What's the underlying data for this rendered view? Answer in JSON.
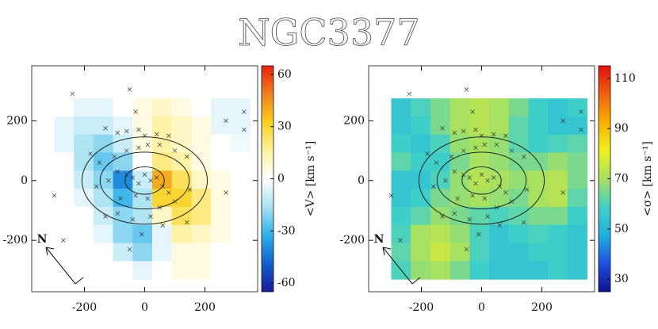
{
  "title": "NGC3377",
  "chart_data": [
    {
      "type": "map",
      "colorbar_label": "<V> [km s⁻¹]",
      "compass_label": "N",
      "xlim": [
        -375,
        375
      ],
      "ylim": [
        -372,
        384
      ],
      "xticks": [
        -200,
        0,
        200
      ],
      "yticks": [
        -200,
        0,
        200
      ],
      "clim": [
        -65,
        65
      ],
      "cticks": [
        -60,
        -30,
        0,
        30,
        60
      ],
      "colormap": [
        "#1a1a9a",
        "#1060d0",
        "#30b0e8",
        "#a8e2f2",
        "#ffffff",
        "#fff2a0",
        "#f8d020",
        "#f08020",
        "#e82010"
      ],
      "extent": {
        "x": [
          -300,
          350
        ],
        "y": [
          -330,
          275
        ]
      },
      "z": [
        [
          0,
          -5,
          -5,
          0,
          5,
          10,
          5,
          0,
          -5,
          -5
        ],
        [
          -5,
          -10,
          -10,
          -5,
          5,
          15,
          10,
          5,
          -5,
          -5
        ],
        [
          -5,
          -15,
          -20,
          -10,
          5,
          15,
          10,
          5,
          0,
          -3
        ],
        [
          0,
          -15,
          -25,
          -20,
          0,
          20,
          15,
          5,
          0,
          0
        ],
        [
          0,
          -10,
          -20,
          -40,
          -10,
          40,
          25,
          10,
          5,
          0
        ],
        [
          0,
          -5,
          -15,
          -30,
          -15,
          30,
          30,
          20,
          5,
          0
        ],
        [
          0,
          0,
          -10,
          -20,
          -15,
          10,
          25,
          20,
          5,
          0
        ],
        [
          0,
          0,
          -5,
          -20,
          -25,
          -5,
          15,
          10,
          5,
          0
        ],
        [
          0,
          0,
          0,
          -10,
          -20,
          -5,
          5,
          5,
          0,
          0
        ],
        [
          0,
          0,
          0,
          0,
          -5,
          0,
          5,
          5,
          0,
          0
        ]
      ],
      "ellipses": [
        [
          65,
          46
        ],
        [
          148,
          95
        ],
        [
          208,
          146
        ]
      ],
      "points": {
        "x": [
          -240,
          -50,
          -30,
          -130,
          -90,
          -60,
          -20,
          0,
          40,
          80,
          -180,
          -150,
          -100,
          -60,
          -20,
          10,
          50,
          100,
          140,
          -90,
          -60,
          -40,
          -20,
          0,
          20,
          40,
          60,
          80,
          -120,
          -160,
          -80,
          -30,
          10,
          50,
          100,
          150,
          -130,
          -90,
          -40,
          20,
          60,
          -10,
          -50,
          -300,
          -270,
          140,
          270,
          330,
          330,
          270
        ],
        "y": [
          290,
          305,
          230,
          175,
          160,
          165,
          170,
          150,
          155,
          150,
          90,
          60,
          80,
          100,
          110,
          120,
          120,
          100,
          80,
          30,
          20,
          10,
          -10,
          20,
          0,
          10,
          -20,
          -40,
          0,
          -20,
          -60,
          -50,
          -60,
          -90,
          -70,
          -30,
          -120,
          -110,
          -130,
          -120,
          -150,
          -180,
          -230,
          -50,
          -200,
          -140,
          200,
          230,
          170,
          -40
        ]
      }
    },
    {
      "type": "map",
      "colorbar_label": "<σ> [km s⁻¹]",
      "compass_label": "N",
      "xlim": [
        -375,
        375
      ],
      "ylim": [
        -372,
        384
      ],
      "xticks": [
        -200,
        0,
        200
      ],
      "yticks": [
        -200,
        0,
        200
      ],
      "clim": [
        25,
        115
      ],
      "cticks": [
        30,
        50,
        70,
        90,
        110
      ],
      "colormap": [
        "#101090",
        "#2050e0",
        "#20b0e0",
        "#40d0c8",
        "#a8e060",
        "#f0f020",
        "#f8b000",
        "#f06010",
        "#e01010"
      ],
      "extent": {
        "x": [
          -300,
          350
        ],
        "y": [
          -330,
          275
        ]
      },
      "z": [
        [
          55,
          60,
          65,
          70,
          72,
          70,
          65,
          58,
          55,
          58
        ],
        [
          55,
          58,
          65,
          70,
          72,
          70,
          62,
          58,
          55,
          55
        ],
        [
          58,
          55,
          60,
          68,
          70,
          68,
          62,
          58,
          60,
          62
        ],
        [
          62,
          58,
          58,
          65,
          70,
          68,
          65,
          65,
          68,
          65
        ],
        [
          55,
          55,
          60,
          68,
          72,
          70,
          68,
          70,
          72,
          65
        ],
        [
          55,
          58,
          65,
          68,
          70,
          68,
          65,
          70,
          72,
          62
        ],
        [
          58,
          62,
          68,
          65,
          62,
          60,
          62,
          65,
          65,
          58
        ],
        [
          60,
          70,
          72,
          68,
          60,
          55,
          58,
          60,
          58,
          55
        ],
        [
          62,
          70,
          75,
          70,
          60,
          55,
          55,
          58,
          58,
          55
        ],
        [
          60,
          68,
          70,
          65,
          58,
          55,
          55,
          55,
          58,
          55
        ]
      ],
      "ellipses": [
        [
          65,
          46
        ],
        [
          148,
          95
        ],
        [
          208,
          146
        ]
      ],
      "points": {
        "x": [
          -240,
          -50,
          -30,
          -130,
          -90,
          -60,
          -20,
          0,
          40,
          80,
          -180,
          -150,
          -100,
          -60,
          -20,
          10,
          50,
          100,
          140,
          -90,
          -60,
          -40,
          -20,
          0,
          20,
          40,
          60,
          80,
          -120,
          -160,
          -80,
          -30,
          10,
          50,
          100,
          150,
          -130,
          -90,
          -40,
          20,
          60,
          -10,
          -50,
          -300,
          -270,
          140,
          270,
          330,
          330,
          270
        ],
        "y": [
          290,
          305,
          230,
          175,
          160,
          165,
          170,
          150,
          155,
          150,
          90,
          60,
          80,
          100,
          110,
          120,
          120,
          100,
          80,
          30,
          20,
          10,
          -10,
          20,
          0,
          10,
          -20,
          -40,
          0,
          -20,
          -60,
          -50,
          -60,
          -90,
          -70,
          -30,
          -120,
          -110,
          -130,
          -120,
          -150,
          -180,
          -230,
          -50,
          -200,
          -140,
          200,
          230,
          170,
          -40
        ]
      }
    }
  ]
}
